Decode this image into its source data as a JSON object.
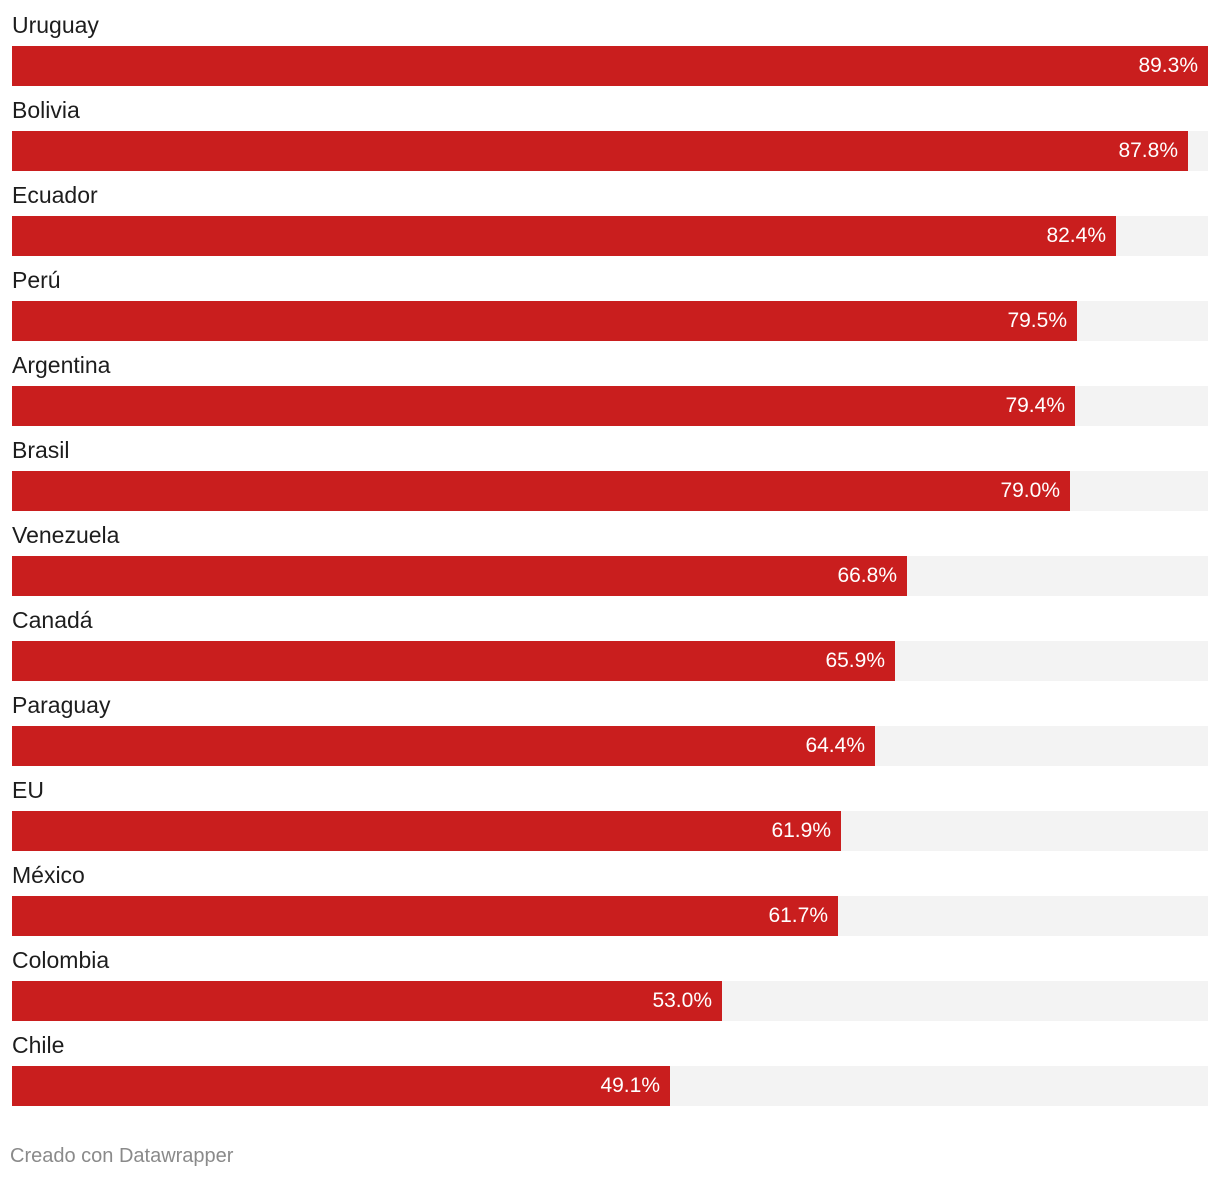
{
  "chart_data": {
    "type": "bar",
    "orientation": "horizontal",
    "categories": [
      "Uruguay",
      "Bolivia",
      "Ecuador",
      "Perú",
      "Argentina",
      "Brasil",
      "Venezuela",
      "Canadá",
      "Paraguay",
      "EU",
      "México",
      "Colombia",
      "Chile"
    ],
    "values": [
      89.3,
      87.8,
      82.4,
      79.5,
      79.4,
      79.0,
      66.8,
      65.9,
      64.4,
      61.9,
      61.7,
      53.0,
      49.1
    ],
    "value_labels": [
      "89.3%",
      "87.8%",
      "82.4%",
      "79.5%",
      "79.4%",
      "79.0%",
      "66.8%",
      "65.9%",
      "64.4%",
      "61.9%",
      "61.7%",
      "53.0%",
      "49.1%"
    ],
    "xlim": [
      0,
      89.3
    ],
    "grid": false,
    "legend": "none",
    "bar_color": "#c91e1e",
    "track_color": "#f3f3f3"
  },
  "footer": {
    "credit": "Creado con Datawrapper"
  }
}
